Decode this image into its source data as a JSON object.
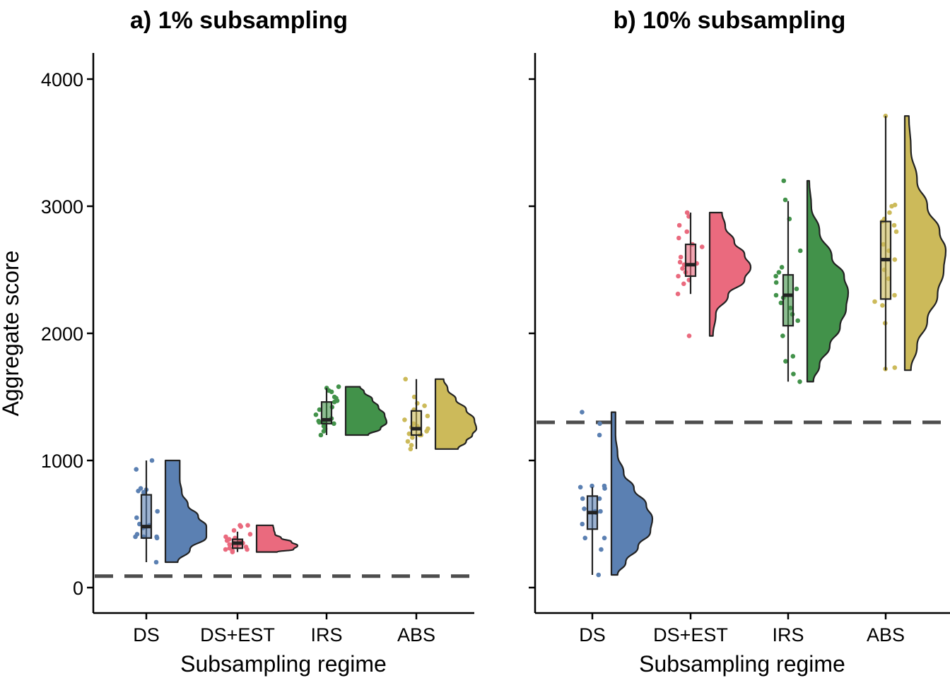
{
  "colors": {
    "DS": "#5b80b2",
    "DS+EST": "#ea6a7e",
    "IRS": "#42924a",
    "ABS": "#ccba5a",
    "reference_line": "#4d4d4d",
    "axis": "#000000"
  },
  "chart_data": [
    {
      "type": "raincloud",
      "title": "a) 1% subsampling",
      "xlabel": "Subsampling regime",
      "ylabel": "Aggregate score",
      "ylim": [
        -200,
        4200
      ],
      "yticks": [
        0,
        1000,
        2000,
        3000,
        4000
      ],
      "show_y_axis_labels": true,
      "grid": false,
      "reference_line": 90,
      "categories": [
        "DS",
        "DS+EST",
        "IRS",
        "ABS"
      ],
      "series": [
        {
          "category": "DS",
          "box": {
            "min": 200,
            "q1": 390,
            "median": 480,
            "q3": 730,
            "max": 1000
          },
          "density": [
            [
              200,
              0.3
            ],
            [
              300,
              0.6
            ],
            [
              400,
              1.0
            ],
            [
              480,
              1.0
            ],
            [
              560,
              0.8
            ],
            [
              650,
              0.55
            ],
            [
              750,
              0.4
            ],
            [
              850,
              0.35
            ],
            [
              950,
              0.35
            ],
            [
              1000,
              0.35
            ]
          ],
          "points": [
            200,
            390,
            400,
            400,
            400,
            420,
            470,
            480,
            490,
            500,
            550,
            600,
            750,
            760,
            770,
            780,
            930,
            1000
          ]
        },
        {
          "category": "DS+EST",
          "box": {
            "min": 280,
            "q1": 310,
            "median": 350,
            "q3": 380,
            "max": 440
          },
          "density": [
            [
              280,
              0.5
            ],
            [
              300,
              0.9
            ],
            [
              330,
              1.0
            ],
            [
              360,
              0.85
            ],
            [
              390,
              0.6
            ],
            [
              420,
              0.45
            ],
            [
              460,
              0.42
            ],
            [
              490,
              0.4
            ]
          ],
          "points": [
            280,
            290,
            300,
            300,
            310,
            320,
            330,
            340,
            340,
            350,
            350,
            360,
            370,
            380,
            390,
            400,
            420,
            450,
            480,
            490,
            490
          ]
        },
        {
          "category": "IRS",
          "box": {
            "min": 1200,
            "q1": 1290,
            "median": 1320,
            "q3": 1460,
            "max": 1570
          },
          "density": [
            [
              1200,
              0.55
            ],
            [
              1250,
              0.85
            ],
            [
              1300,
              1.0
            ],
            [
              1360,
              0.95
            ],
            [
              1420,
              0.8
            ],
            [
              1480,
              0.65
            ],
            [
              1540,
              0.45
            ],
            [
              1580,
              0.35
            ]
          ],
          "points": [
            1200,
            1230,
            1250,
            1270,
            1290,
            1290,
            1300,
            1300,
            1310,
            1330,
            1360,
            1400,
            1420,
            1460,
            1470,
            1490,
            1500,
            1540,
            1550,
            1570,
            1580
          ]
        },
        {
          "category": "ABS",
          "box": {
            "min": 1090,
            "q1": 1200,
            "median": 1250,
            "q3": 1390,
            "max": 1640
          },
          "density": [
            [
              1090,
              0.55
            ],
            [
              1150,
              0.75
            ],
            [
              1200,
              0.9
            ],
            [
              1250,
              1.0
            ],
            [
              1320,
              0.95
            ],
            [
              1400,
              0.75
            ],
            [
              1480,
              0.5
            ],
            [
              1560,
              0.3
            ],
            [
              1640,
              0.2
            ]
          ],
          "points": [
            1090,
            1120,
            1150,
            1180,
            1200,
            1200,
            1210,
            1230,
            1250,
            1260,
            1270,
            1290,
            1320,
            1350,
            1400,
            1430,
            1450,
            1500,
            1640
          ]
        }
      ]
    },
    {
      "type": "raincloud",
      "title": "b) 10% subsampling",
      "xlabel": "Subsampling regime",
      "ylabel": "",
      "ylim": [
        -200,
        4200
      ],
      "yticks": [
        0,
        1000,
        2000,
        3000,
        4000
      ],
      "show_y_axis_labels": false,
      "grid": false,
      "reference_line": 1300,
      "categories": [
        "DS",
        "DS+EST",
        "IRS",
        "ABS"
      ],
      "series": [
        {
          "category": "DS",
          "box": {
            "min": 100,
            "q1": 460,
            "median": 590,
            "q3": 720,
            "max": 790
          },
          "density": [
            [
              100,
              0.15
            ],
            [
              200,
              0.35
            ],
            [
              320,
              0.65
            ],
            [
              440,
              0.95
            ],
            [
              540,
              1.0
            ],
            [
              650,
              0.85
            ],
            [
              780,
              0.55
            ],
            [
              900,
              0.3
            ],
            [
              1050,
              0.15
            ],
            [
              1200,
              0.1
            ],
            [
              1380,
              0.1
            ]
          ],
          "points": [
            100,
            300,
            390,
            390,
            500,
            590,
            590,
            600,
            600,
            620,
            700,
            700,
            780,
            790,
            800,
            800,
            1200,
            1290,
            1380
          ]
        },
        {
          "category": "DS+EST",
          "box": {
            "min": 2310,
            "q1": 2450,
            "median": 2540,
            "q3": 2700,
            "max": 2950
          },
          "density": [
            [
              1980,
              0.08
            ],
            [
              2150,
              0.15
            ],
            [
              2300,
              0.45
            ],
            [
              2420,
              0.85
            ],
            [
              2520,
              1.0
            ],
            [
              2620,
              0.85
            ],
            [
              2720,
              0.6
            ],
            [
              2840,
              0.38
            ],
            [
              2950,
              0.3
            ]
          ],
          "points": [
            1980,
            2310,
            2390,
            2420,
            2450,
            2480,
            2510,
            2540,
            2550,
            2560,
            2600,
            2680,
            2700,
            2750,
            2800,
            2850,
            2920,
            2950
          ]
        },
        {
          "category": "IRS",
          "box": {
            "min": 1620,
            "q1": 2060,
            "median": 2300,
            "q3": 2460,
            "max": 3040
          },
          "density": [
            [
              1620,
              0.15
            ],
            [
              1750,
              0.3
            ],
            [
              1900,
              0.55
            ],
            [
              2050,
              0.8
            ],
            [
              2200,
              0.95
            ],
            [
              2320,
              1.0
            ],
            [
              2450,
              0.9
            ],
            [
              2600,
              0.6
            ],
            [
              2800,
              0.3
            ],
            [
              3000,
              0.1
            ],
            [
              3200,
              0.05
            ]
          ],
          "points": [
            1620,
            1680,
            1780,
            1820,
            1980,
            2100,
            2150,
            2200,
            2240,
            2280,
            2300,
            2350,
            2400,
            2450,
            2480,
            2520,
            2650,
            2900,
            3050,
            3200
          ]
        },
        {
          "category": "ABS",
          "box": {
            "min": 1710,
            "q1": 2270,
            "median": 2580,
            "q3": 2880,
            "max": 3710
          },
          "density": [
            [
              1710,
              0.15
            ],
            [
              1900,
              0.3
            ],
            [
              2100,
              0.55
            ],
            [
              2300,
              0.8
            ],
            [
              2500,
              0.95
            ],
            [
              2650,
              1.0
            ],
            [
              2800,
              0.85
            ],
            [
              3000,
              0.55
            ],
            [
              3200,
              0.3
            ],
            [
              3450,
              0.15
            ],
            [
              3710,
              0.1
            ]
          ],
          "points": [
            1720,
            1730,
            2080,
            2220,
            2250,
            2300,
            2430,
            2500,
            2580,
            2650,
            2700,
            2800,
            2850,
            2880,
            2900,
            2950,
            3000,
            3010,
            3710
          ]
        }
      ]
    }
  ]
}
